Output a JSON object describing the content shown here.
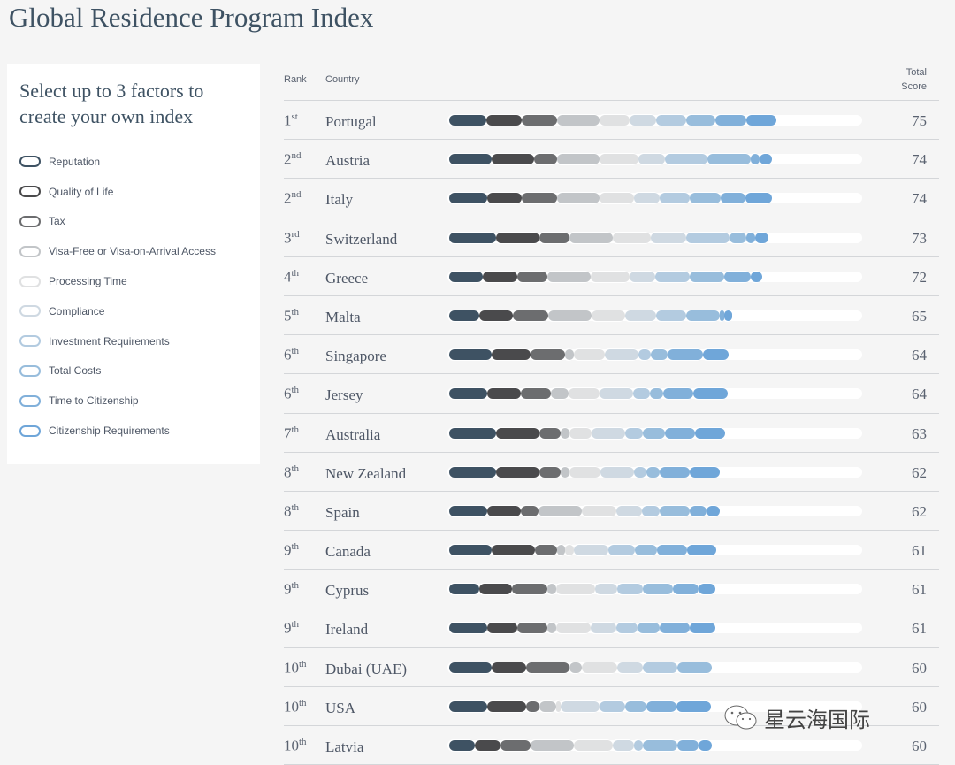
{
  "title": "Global Residence Program Index",
  "panel": {
    "heading": "Select up to 3 factors to create your own index"
  },
  "watermark": "星云海国际",
  "chart_data": {
    "type": "bar",
    "stacked": true,
    "orientation": "horizontal",
    "headers": {
      "rank": "Rank",
      "country": "Country",
      "score": "Total Score"
    },
    "factors": [
      {
        "name": "Reputation",
        "color": "#3e5263"
      },
      {
        "name": "Quality of Life",
        "color": "#4a4a4c"
      },
      {
        "name": "Tax",
        "color": "#6c6d6f"
      },
      {
        "name": "Visa-Free or Visa-on-Arrival Access",
        "color": "#c2c5c8"
      },
      {
        "name": "Processing Time",
        "color": "#e0e1e2"
      },
      {
        "name": "Compliance",
        "color": "#cfd9e2"
      },
      {
        "name": "Investment Requirements",
        "color": "#b3cbe0"
      },
      {
        "name": "Total Costs",
        "color": "#98bddc"
      },
      {
        "name": "Time to Citizenship",
        "color": "#81b0da"
      },
      {
        "name": "Citizenship Requirements",
        "color": "#6fa6d9"
      }
    ],
    "rows": [
      {
        "rank": "1",
        "suffix": "st",
        "country": "Portugal",
        "score": 75,
        "values": [
          8.6,
          8,
          8.1,
          9.8,
          6.9,
          6,
          6.9,
          6.7,
          7.1,
          6.9
        ]
      },
      {
        "rank": "2",
        "suffix": "nd",
        "country": "Austria",
        "score": 74,
        "values": [
          9.7,
          9.8,
          5.2,
          9.8,
          9,
          5.9,
          9.9,
          9.8,
          2,
          3
        ]
      },
      {
        "rank": "2",
        "suffix": "nd",
        "country": "Italy",
        "score": 74,
        "values": [
          8.7,
          7.9,
          8.1,
          9.8,
          7.9,
          5.9,
          6.9,
          7,
          5.8,
          6
        ]
      },
      {
        "rank": "3",
        "suffix": "rd",
        "country": "Switzerland",
        "score": 73,
        "values": [
          10.7,
          9.9,
          6.9,
          10,
          8.8,
          8.1,
          9.8,
          3.9,
          2,
          3.1
        ]
      },
      {
        "rank": "4",
        "suffix": "th",
        "country": "Greece",
        "score": 72,
        "values": [
          7.8,
          7.9,
          6.9,
          9.9,
          8.8,
          6,
          7.8,
          7.9,
          6.1,
          2.8
        ]
      },
      {
        "rank": "5",
        "suffix": "th",
        "country": "Malta",
        "score": 65,
        "values": [
          6.8,
          7.9,
          8,
          9.9,
          7.8,
          7,
          6.9,
          7.7,
          1,
          1.9
        ]
      },
      {
        "rank": "6",
        "suffix": "th",
        "country": "Singapore",
        "score": 64,
        "values": [
          9.8,
          8.9,
          7.8,
          2,
          7.1,
          7.8,
          2.8,
          3.9,
          8.1,
          5.9
        ]
      },
      {
        "rank": "6",
        "suffix": "th",
        "country": "Jersey",
        "score": 64,
        "values": [
          8.8,
          7.7,
          6.9,
          4,
          7.1,
          7.7,
          3.9,
          3,
          6.9,
          7.9
        ]
      },
      {
        "rank": "7",
        "suffix": "th",
        "country": "Australia",
        "score": 63,
        "values": [
          10.7,
          9.9,
          4.9,
          2,
          5.1,
          7.8,
          4,
          5.1,
          6.8,
          6.9
        ]
      },
      {
        "rank": "8",
        "suffix": "th",
        "country": "New Zealand",
        "score": 62,
        "values": [
          10.7,
          9.9,
          4.9,
          2,
          7.1,
          7.7,
          3,
          2.9,
          6.9,
          6.9
        ]
      },
      {
        "rank": "8",
        "suffix": "th",
        "country": "Spain",
        "score": 62,
        "values": [
          8.8,
          7.7,
          4,
          9.9,
          8,
          5.9,
          3.9,
          6.9,
          4,
          2.9
        ]
      },
      {
        "rank": "9",
        "suffix": "th",
        "country": "Canada",
        "score": 61,
        "values": [
          9.7,
          9.9,
          5.1,
          1.9,
          2,
          8,
          5.9,
          5.1,
          6.9,
          6.7
        ]
      },
      {
        "rank": "9",
        "suffix": "th",
        "country": "Cyprus",
        "score": 61,
        "values": [
          6.8,
          7.7,
          8.1,
          1.9,
          8.9,
          5.1,
          5.9,
          6.9,
          5.9,
          3.9
        ]
      },
      {
        "rank": "9",
        "suffix": "th",
        "country": "Ireland",
        "score": 61,
        "values": [
          8.8,
          6.9,
          6.9,
          1.9,
          8,
          5.9,
          4.9,
          4.9,
          6.9,
          5.9
        ]
      },
      {
        "rank": "10",
        "suffix": "th",
        "country": "Dubai (UAE)",
        "score": 60,
        "values": [
          9.8,
          7.9,
          9.8,
          3,
          8,
          5.9,
          8,
          7.9,
          0,
          0
        ]
      },
      {
        "rank": "10",
        "suffix": "th",
        "country": "USA",
        "score": 60,
        "values": [
          8.8,
          8.9,
          2.9,
          4,
          0.9,
          9,
          5.8,
          5,
          6.8,
          8
        ]
      },
      {
        "rank": "10",
        "suffix": "th",
        "country": "Latvia",
        "score": 60,
        "values": [
          5.8,
          5.9,
          7,
          9.8,
          9,
          4.9,
          2,
          8,
          4.9,
          3
        ]
      }
    ]
  }
}
